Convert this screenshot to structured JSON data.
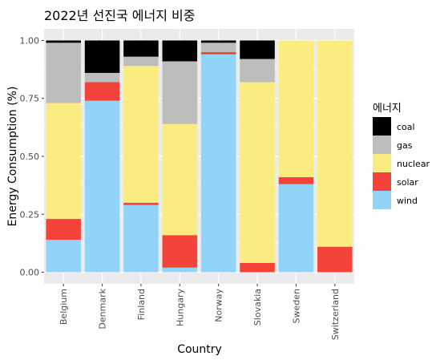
{
  "chart_data": {
    "type": "bar",
    "stacked": true,
    "title": "2022년 선진국 에너지 비중",
    "xlabel": "Country",
    "ylabel": "Energy Consumption (%)",
    "ylim": [
      0,
      1
    ],
    "yticks": [
      "0.00",
      "0.25",
      "0.50",
      "0.75",
      "1.00"
    ],
    "ytick_values": [
      0,
      0.25,
      0.5,
      0.75,
      1.0
    ],
    "grid": true,
    "legend_position": "right",
    "legend_title": "에너지",
    "categories": [
      "Belgium",
      "Denmark",
      "Finland",
      "Hungary",
      "Norway",
      "Slovakia",
      "Sweden",
      "Switzerland"
    ],
    "series": [
      {
        "name": "wind",
        "color": "#92d4f7",
        "values": [
          0.14,
          0.74,
          0.29,
          0.02,
          0.94,
          0.0,
          0.38,
          0.0
        ]
      },
      {
        "name": "solar",
        "color": "#f4433b",
        "values": [
          0.09,
          0.08,
          0.01,
          0.14,
          0.01,
          0.04,
          0.03,
          0.11
        ]
      },
      {
        "name": "nuclear",
        "color": "#fbec81",
        "values": [
          0.5,
          0.0,
          0.59,
          0.48,
          0.0,
          0.78,
          0.59,
          0.89
        ]
      },
      {
        "name": "gas",
        "color": "#bdbdbd",
        "values": [
          0.26,
          0.04,
          0.04,
          0.27,
          0.04,
          0.1,
          0.0,
          0.0
        ]
      },
      {
        "name": "coal",
        "color": "#000000",
        "values": [
          0.01,
          0.14,
          0.07,
          0.09,
          0.01,
          0.08,
          0.0,
          0.0
        ]
      }
    ],
    "legend_order": [
      "coal",
      "gas",
      "nuclear",
      "solar",
      "wind"
    ]
  }
}
